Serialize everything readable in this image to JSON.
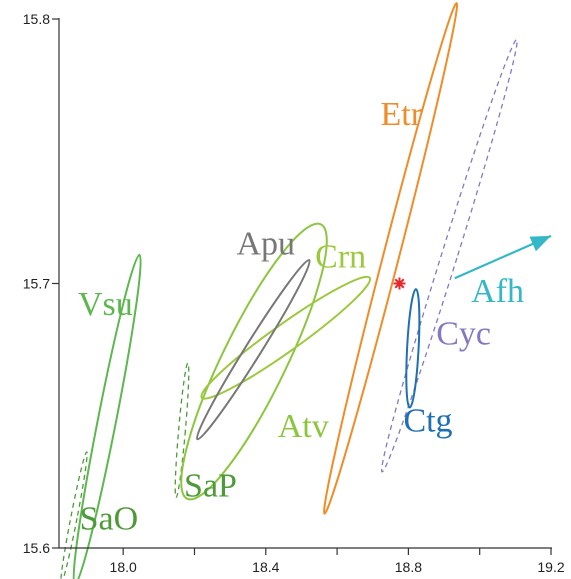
{
  "chart_data": {
    "type": "scatter",
    "title": "",
    "xlabel": "",
    "ylabel": "",
    "xlim": [
      17.82,
      19.2
    ],
    "ylim": [
      15.6,
      15.8
    ],
    "x_ticks": [
      {
        "value": 18.0,
        "label": "18.0"
      },
      {
        "value": 18.4,
        "label": "18.4"
      },
      {
        "value": 18.8,
        "label": "18.8"
      },
      {
        "value": 19.2,
        "label": "19.2"
      }
    ],
    "y_ticks": [
      {
        "value": 15.6,
        "label": "15.6"
      },
      {
        "value": 15.7,
        "label": "15.7"
      },
      {
        "value": 15.8,
        "label": "15.8"
      }
    ],
    "x_minor_ticks": [
      18.2,
      18.6,
      19.0
    ],
    "y_minor_ticks": [],
    "grid": false,
    "regions": [
      {
        "label": "Vsu",
        "color": "#5cb74e",
        "style": "solid",
        "cx": 17.955,
        "cy": 15.6485,
        "rx": 0.0255,
        "ry": 0.0635,
        "rotation_deg": 11.1,
        "label_at": [
          17.95,
          15.688
        ]
      },
      {
        "label": "SaO",
        "color": "#4e9a3a",
        "style": "dashed",
        "cx": 17.862,
        "cy": 15.6115,
        "rx": 0.0088,
        "ry": 0.0253,
        "rotation_deg": 11.0,
        "label_at": [
          17.96,
          15.607
        ]
      },
      {
        "label": "SaP",
        "color": "#4e9a3a",
        "style": "dashed",
        "cx": 18.165,
        "cy": 15.6445,
        "rx": 0.0095,
        "ry": 0.0255,
        "rotation_deg": 5.0,
        "label_at": [
          18.245,
          15.6195
        ]
      },
      {
        "label": "Atv",
        "color": "#8cc63e",
        "style": "solid",
        "cx": 18.367,
        "cy": 15.6705,
        "rx": 0.0893,
        "ry": 0.0577,
        "rotation_deg": 26.0,
        "label_at": [
          18.505,
          15.642
        ]
      },
      {
        "label": "Crn",
        "color": "#9cc93c",
        "style": "solid",
        "cx": 18.456,
        "cy": 15.6795,
        "rx": 0.0382,
        "ry": 0.039,
        "rotation_deg": 54.5,
        "label_at": [
          18.61,
          15.706
        ]
      },
      {
        "label": "Apu",
        "color": "#777777",
        "style": "solid",
        "cx": 18.365,
        "cy": 15.675,
        "rx": 0.0222,
        "ry": 0.0399,
        "rotation_deg": 32.0,
        "label_at": [
          18.4,
          15.711
        ]
      },
      {
        "label": "Etr",
        "color": "#f08c28",
        "style": "solid",
        "cx": 18.75,
        "cy": 15.7095,
        "rx": 0.0221,
        "ry": 0.0997,
        "rotation_deg": 14.5,
        "label_at": [
          18.78,
          15.76
        ]
      },
      {
        "label": "Cyc",
        "color": "#8578c2",
        "style": "dashed",
        "cx": 18.915,
        "cy": 15.7105,
        "rx": 0.0221,
        "ry": 0.0856,
        "rotation_deg": 17.3,
        "label_at": [
          18.955,
          15.677
        ]
      },
      {
        "label": "Ctg",
        "color": "#1f6fb4",
        "style": "solid",
        "cx": 18.8125,
        "cy": 15.6755,
        "rx": 0.0161,
        "ry": 0.0224,
        "rotation_deg": 3.0,
        "label_at": [
          18.855,
          15.644
        ]
      }
    ],
    "points": [
      {
        "label": "",
        "x": 18.775,
        "y": 15.7,
        "color": "#e8262d",
        "marker": "asterisk"
      }
    ],
    "arrows": [
      {
        "label": "Afh",
        "color": "#34b8c8",
        "x0": 18.93,
        "y0": 15.702,
        "x1": 19.2,
        "y1": 15.718,
        "label_at": [
          19.05,
          15.693
        ]
      }
    ]
  }
}
